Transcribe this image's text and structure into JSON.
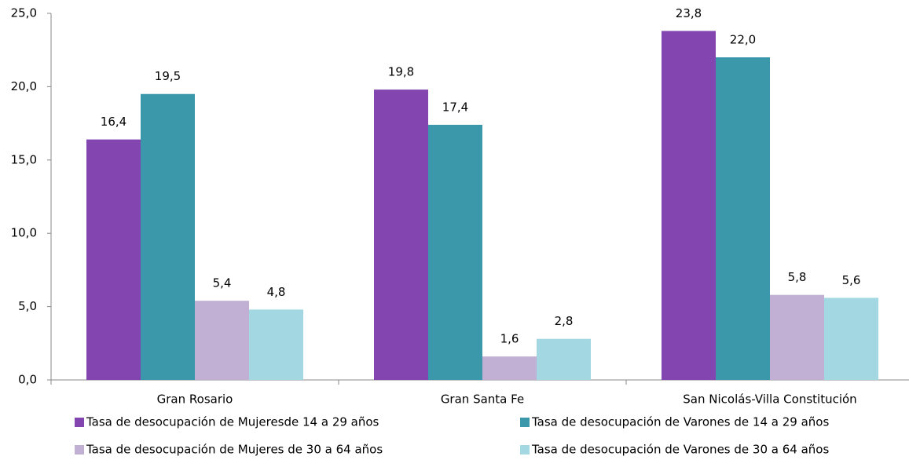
{
  "chart_data": {
    "type": "bar",
    "categories": [
      "Gran Rosario",
      "Gran Santa Fe",
      "San Nicolás-Villa Constitución"
    ],
    "series": [
      {
        "name": "Tasa de desocupación de Mujeresde 14 a 29 años",
        "color": "#8346b0",
        "values": [
          16.4,
          19.8,
          23.8
        ],
        "value_labels": [
          "16,4",
          "19,8",
          "23,8"
        ]
      },
      {
        "name": "Tasa de desocupación de Varones de 14 a 29 años",
        "color": "#3b98ab",
        "values": [
          19.5,
          17.4,
          22.0
        ],
        "value_labels": [
          "19,5",
          "17,4",
          "22,0"
        ]
      },
      {
        "name": "Tasa de desocupación de Mujeres de 30 a 64 años",
        "color": "#c1b0d4",
        "values": [
          5.4,
          1.6,
          5.8
        ],
        "value_labels": [
          "5,4",
          "1,6",
          "5,8"
        ]
      },
      {
        "name": "Tasa de desocupación de Varones de 30 a 64 años",
        "color": "#a3d8e3",
        "values": [
          4.8,
          2.8,
          5.6
        ],
        "value_labels": [
          "4,8",
          "2,8",
          "5,6"
        ]
      }
    ],
    "ylim": [
      0,
      25
    ],
    "yticks": [
      {
        "value": 0,
        "label": "0,0"
      },
      {
        "value": 5,
        "label": "5,0"
      },
      {
        "value": 10,
        "label": "10,0"
      },
      {
        "value": 15,
        "label": "15,0"
      },
      {
        "value": 20,
        "label": "20,0"
      },
      {
        "value": 25,
        "label": "25,0"
      }
    ],
    "grid": false
  }
}
